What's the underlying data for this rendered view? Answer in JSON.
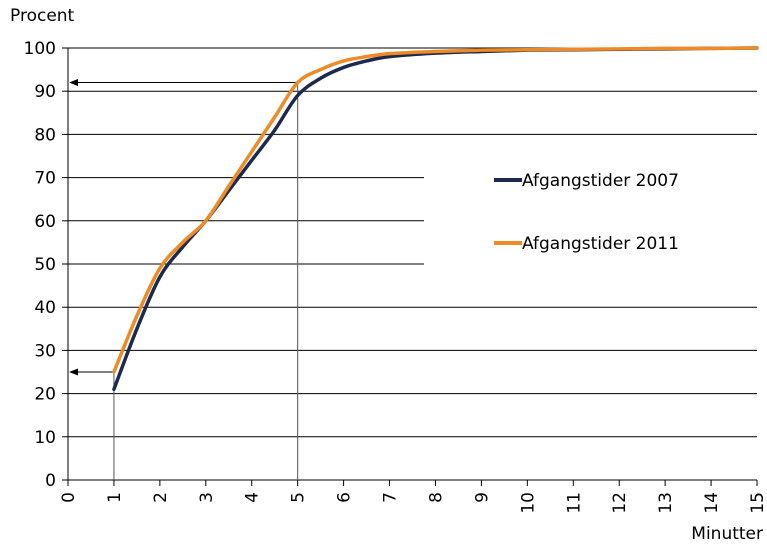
{
  "chart_data": {
    "type": "line",
    "ylabel": "Procent",
    "xlabel": "Minutter",
    "xlim": [
      0,
      15
    ],
    "ylim": [
      0,
      100
    ],
    "xticks": [
      "0",
      "1",
      "2",
      "3",
      "4",
      "5",
      "6",
      "7",
      "8",
      "9",
      "10",
      "11",
      "12",
      "13",
      "14",
      "15"
    ],
    "yticks": [
      "0",
      "10",
      "20",
      "30",
      "40",
      "50",
      "60",
      "70",
      "80",
      "90",
      "100"
    ],
    "grid": "horizontal",
    "legend_position": "right-center",
    "series": [
      {
        "name": "Afgangstider 2007",
        "color": "#1b2a4e",
        "x": [
          1,
          1.5,
          2,
          2.5,
          3,
          3.5,
          4,
          4.5,
          5,
          5.5,
          6,
          6.5,
          7,
          8,
          9,
          10,
          11,
          12,
          13,
          14,
          15
        ],
        "y": [
          21,
          35,
          47,
          54,
          60,
          67,
          74,
          81,
          89,
          93,
          95.5,
          97,
          98,
          98.8,
          99.2,
          99.5,
          99.6,
          99.7,
          99.8,
          99.9,
          100
        ]
      },
      {
        "name": "Afgangstider 2011",
        "color": "#f08a24",
        "x": [
          1,
          1.5,
          2,
          2.5,
          3,
          3.5,
          4,
          4.5,
          5,
          5.5,
          6,
          6.5,
          7,
          8,
          9,
          10,
          11,
          12,
          13,
          14,
          15
        ],
        "y": [
          25,
          38,
          49,
          55,
          60,
          68,
          76,
          84,
          92,
          95,
          97,
          98,
          98.7,
          99.2,
          99.5,
          99.6,
          99.7,
          99.8,
          99.9,
          99.9,
          100
        ]
      }
    ],
    "annotations": [
      {
        "from_x": 1,
        "y": 25,
        "type": "reference-arrow"
      },
      {
        "from_x": 5,
        "y": 92,
        "type": "reference-arrow"
      }
    ]
  }
}
